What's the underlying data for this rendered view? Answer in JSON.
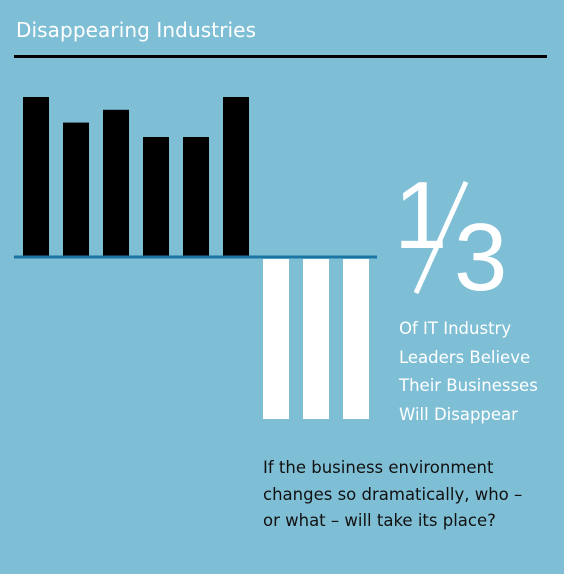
{
  "title": "Disappearing Industries",
  "stat": {
    "numerator": "1",
    "slash": "/",
    "denominator": "3",
    "caption_lines": [
      "Of IT Industry",
      "Leaders Believe",
      "Their Businesses",
      "Will Disappear"
    ]
  },
  "question_lines": [
    "If the business environment",
    "changes so dramatically, who –",
    "or what – will take its place?"
  ],
  "colors": {
    "background": "#7fbfd6",
    "bars_up": "#000000",
    "bars_down": "#ffffff",
    "baseline": "#1a75a3",
    "rule": "#000000",
    "text_light": "#ffffff",
    "text_dark": "#111111"
  },
  "chart_data": {
    "type": "bar",
    "title": "",
    "xlabel": "",
    "ylabel": "",
    "grid": false,
    "legend": "none",
    "ylim": [
      -1,
      1
    ],
    "values": [
      1.0,
      0.84,
      0.92,
      0.75,
      0.75,
      1.0,
      -1.0,
      -1.0,
      -1.0
    ]
  }
}
